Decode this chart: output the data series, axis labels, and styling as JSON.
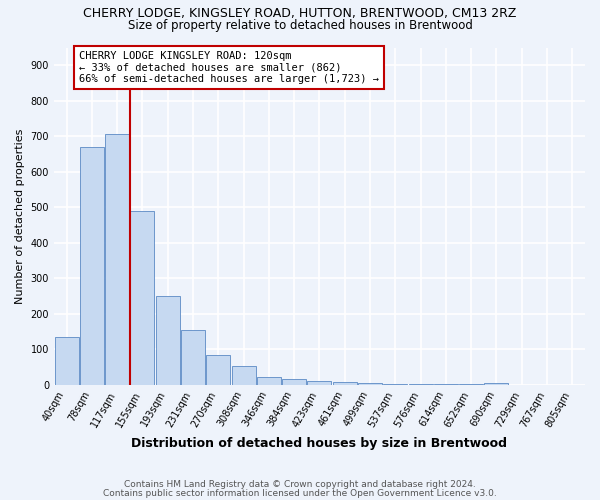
{
  "title": "CHERRY LODGE, KINGSLEY ROAD, HUTTON, BRENTWOOD, CM13 2RZ",
  "subtitle": "Size of property relative to detached houses in Brentwood",
  "xlabel": "Distribution of detached houses by size in Brentwood",
  "ylabel": "Number of detached properties",
  "categories": [
    "40sqm",
    "78sqm",
    "117sqm",
    "155sqm",
    "193sqm",
    "231sqm",
    "270sqm",
    "308sqm",
    "346sqm",
    "384sqm",
    "423sqm",
    "461sqm",
    "499sqm",
    "537sqm",
    "576sqm",
    "614sqm",
    "652sqm",
    "690sqm",
    "729sqm",
    "767sqm",
    "805sqm"
  ],
  "values": [
    135,
    670,
    705,
    490,
    250,
    155,
    85,
    52,
    22,
    15,
    10,
    8,
    5,
    3,
    3,
    2,
    2,
    6,
    0,
    0,
    0
  ],
  "bar_color": "#c6d9f1",
  "bar_edge_color": "#5b8ac5",
  "vline_x_index": 2,
  "vline_color": "#c00000",
  "annotation_text": "CHERRY LODGE KINGSLEY ROAD: 120sqm\n← 33% of detached houses are smaller (862)\n66% of semi-detached houses are larger (1,723) →",
  "annotation_box_color": "#c00000",
  "annotation_box_fill": "#ffffff",
  "ylim": [
    0,
    950
  ],
  "yticks": [
    0,
    100,
    200,
    300,
    400,
    500,
    600,
    700,
    800,
    900
  ],
  "footer_line1": "Contains HM Land Registry data © Crown copyright and database right 2024.",
  "footer_line2": "Contains public sector information licensed under the Open Government Licence v3.0.",
  "bg_color": "#eef3fb",
  "grid_color": "#ffffff",
  "title_fontsize": 9,
  "subtitle_fontsize": 8.5,
  "tick_fontsize": 7,
  "ylabel_fontsize": 8,
  "xlabel_fontsize": 9,
  "annotation_fontsize": 7.5
}
